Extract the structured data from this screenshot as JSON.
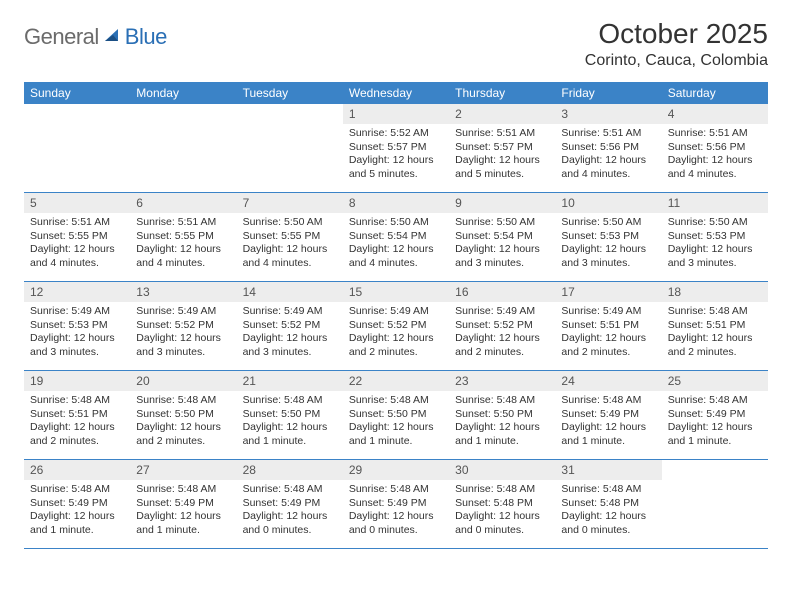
{
  "logo": {
    "part1": "General",
    "part2": "Blue"
  },
  "title": "October 2025",
  "location": "Corinto, Cauca, Colombia",
  "colors": {
    "header_bg": "#3b83c7",
    "header_text": "#ffffff",
    "daynum_bg": "#ededed",
    "daynum_text": "#555555",
    "body_text": "#333333",
    "border": "#3b83c7",
    "logo_gray": "#6b6b6b",
    "logo_blue": "#2a6fb5"
  },
  "dow": [
    "Sunday",
    "Monday",
    "Tuesday",
    "Wednesday",
    "Thursday",
    "Friday",
    "Saturday"
  ],
  "weeks": [
    [
      null,
      null,
      null,
      {
        "n": "1",
        "sr": "Sunrise: 5:52 AM",
        "ss": "Sunset: 5:57 PM",
        "dl": "Daylight: 12 hours and 5 minutes."
      },
      {
        "n": "2",
        "sr": "Sunrise: 5:51 AM",
        "ss": "Sunset: 5:57 PM",
        "dl": "Daylight: 12 hours and 5 minutes."
      },
      {
        "n": "3",
        "sr": "Sunrise: 5:51 AM",
        "ss": "Sunset: 5:56 PM",
        "dl": "Daylight: 12 hours and 4 minutes."
      },
      {
        "n": "4",
        "sr": "Sunrise: 5:51 AM",
        "ss": "Sunset: 5:56 PM",
        "dl": "Daylight: 12 hours and 4 minutes."
      }
    ],
    [
      {
        "n": "5",
        "sr": "Sunrise: 5:51 AM",
        "ss": "Sunset: 5:55 PM",
        "dl": "Daylight: 12 hours and 4 minutes."
      },
      {
        "n": "6",
        "sr": "Sunrise: 5:51 AM",
        "ss": "Sunset: 5:55 PM",
        "dl": "Daylight: 12 hours and 4 minutes."
      },
      {
        "n": "7",
        "sr": "Sunrise: 5:50 AM",
        "ss": "Sunset: 5:55 PM",
        "dl": "Daylight: 12 hours and 4 minutes."
      },
      {
        "n": "8",
        "sr": "Sunrise: 5:50 AM",
        "ss": "Sunset: 5:54 PM",
        "dl": "Daylight: 12 hours and 4 minutes."
      },
      {
        "n": "9",
        "sr": "Sunrise: 5:50 AM",
        "ss": "Sunset: 5:54 PM",
        "dl": "Daylight: 12 hours and 3 minutes."
      },
      {
        "n": "10",
        "sr": "Sunrise: 5:50 AM",
        "ss": "Sunset: 5:53 PM",
        "dl": "Daylight: 12 hours and 3 minutes."
      },
      {
        "n": "11",
        "sr": "Sunrise: 5:50 AM",
        "ss": "Sunset: 5:53 PM",
        "dl": "Daylight: 12 hours and 3 minutes."
      }
    ],
    [
      {
        "n": "12",
        "sr": "Sunrise: 5:49 AM",
        "ss": "Sunset: 5:53 PM",
        "dl": "Daylight: 12 hours and 3 minutes."
      },
      {
        "n": "13",
        "sr": "Sunrise: 5:49 AM",
        "ss": "Sunset: 5:52 PM",
        "dl": "Daylight: 12 hours and 3 minutes."
      },
      {
        "n": "14",
        "sr": "Sunrise: 5:49 AM",
        "ss": "Sunset: 5:52 PM",
        "dl": "Daylight: 12 hours and 3 minutes."
      },
      {
        "n": "15",
        "sr": "Sunrise: 5:49 AM",
        "ss": "Sunset: 5:52 PM",
        "dl": "Daylight: 12 hours and 2 minutes."
      },
      {
        "n": "16",
        "sr": "Sunrise: 5:49 AM",
        "ss": "Sunset: 5:52 PM",
        "dl": "Daylight: 12 hours and 2 minutes."
      },
      {
        "n": "17",
        "sr": "Sunrise: 5:49 AM",
        "ss": "Sunset: 5:51 PM",
        "dl": "Daylight: 12 hours and 2 minutes."
      },
      {
        "n": "18",
        "sr": "Sunrise: 5:48 AM",
        "ss": "Sunset: 5:51 PM",
        "dl": "Daylight: 12 hours and 2 minutes."
      }
    ],
    [
      {
        "n": "19",
        "sr": "Sunrise: 5:48 AM",
        "ss": "Sunset: 5:51 PM",
        "dl": "Daylight: 12 hours and 2 minutes."
      },
      {
        "n": "20",
        "sr": "Sunrise: 5:48 AM",
        "ss": "Sunset: 5:50 PM",
        "dl": "Daylight: 12 hours and 2 minutes."
      },
      {
        "n": "21",
        "sr": "Sunrise: 5:48 AM",
        "ss": "Sunset: 5:50 PM",
        "dl": "Daylight: 12 hours and 1 minute."
      },
      {
        "n": "22",
        "sr": "Sunrise: 5:48 AM",
        "ss": "Sunset: 5:50 PM",
        "dl": "Daylight: 12 hours and 1 minute."
      },
      {
        "n": "23",
        "sr": "Sunrise: 5:48 AM",
        "ss": "Sunset: 5:50 PM",
        "dl": "Daylight: 12 hours and 1 minute."
      },
      {
        "n": "24",
        "sr": "Sunrise: 5:48 AM",
        "ss": "Sunset: 5:49 PM",
        "dl": "Daylight: 12 hours and 1 minute."
      },
      {
        "n": "25",
        "sr": "Sunrise: 5:48 AM",
        "ss": "Sunset: 5:49 PM",
        "dl": "Daylight: 12 hours and 1 minute."
      }
    ],
    [
      {
        "n": "26",
        "sr": "Sunrise: 5:48 AM",
        "ss": "Sunset: 5:49 PM",
        "dl": "Daylight: 12 hours and 1 minute."
      },
      {
        "n": "27",
        "sr": "Sunrise: 5:48 AM",
        "ss": "Sunset: 5:49 PM",
        "dl": "Daylight: 12 hours and 1 minute."
      },
      {
        "n": "28",
        "sr": "Sunrise: 5:48 AM",
        "ss": "Sunset: 5:49 PM",
        "dl": "Daylight: 12 hours and 0 minutes."
      },
      {
        "n": "29",
        "sr": "Sunrise: 5:48 AM",
        "ss": "Sunset: 5:49 PM",
        "dl": "Daylight: 12 hours and 0 minutes."
      },
      {
        "n": "30",
        "sr": "Sunrise: 5:48 AM",
        "ss": "Sunset: 5:48 PM",
        "dl": "Daylight: 12 hours and 0 minutes."
      },
      {
        "n": "31",
        "sr": "Sunrise: 5:48 AM",
        "ss": "Sunset: 5:48 PM",
        "dl": "Daylight: 12 hours and 0 minutes."
      },
      null
    ]
  ]
}
